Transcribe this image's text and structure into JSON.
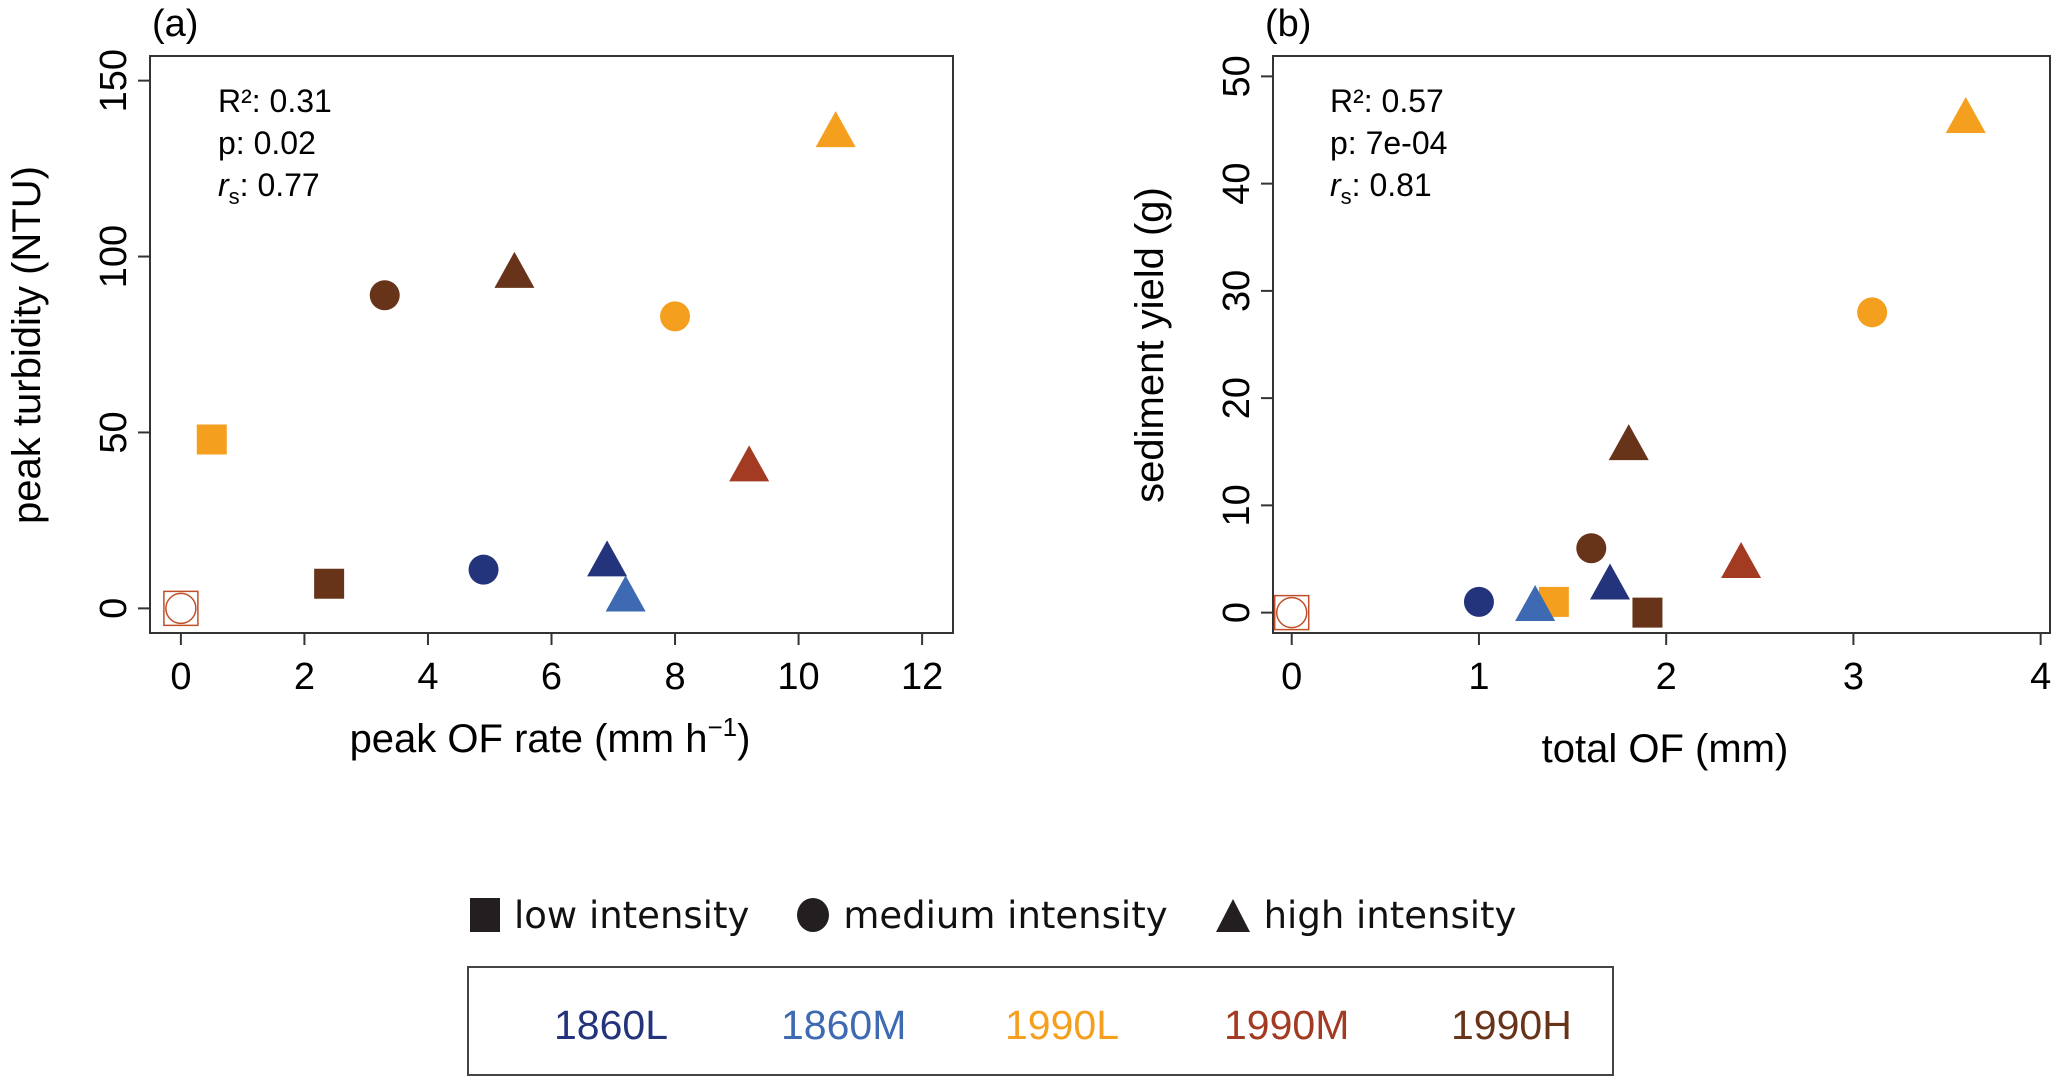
{
  "chart_data": [
    {
      "type": "scatter",
      "panel_label": "(a)",
      "xlabel": "peak OF rate (mm h",
      "xlabel_superscript": "−1",
      "xlabel_suffix": ")",
      "ylabel": "peak turbidity (NTU)",
      "xlim": [
        -0.5,
        12.5
      ],
      "ylim": [
        -7,
        157
      ],
      "xticks": [
        0,
        2,
        4,
        6,
        8,
        10,
        12
      ],
      "yticks": [
        0,
        50,
        100,
        150
      ],
      "grid": false,
      "stats": {
        "r2": "R²: 0.31",
        "p": "p: 0.02",
        "rs_symbol": "r",
        "rs_sub": "s",
        "rs_value": ": 0.77"
      },
      "points": [
        {
          "series": "outlier",
          "shape": "open",
          "x": 0,
          "y": 0
        },
        {
          "series": "1990L",
          "shape": "square",
          "x": 0.5,
          "y": 48
        },
        {
          "series": "1990H",
          "shape": "square",
          "x": 2.4,
          "y": 7
        },
        {
          "series": "1990H",
          "shape": "circle",
          "x": 3.3,
          "y": 89
        },
        {
          "series": "1860L",
          "shape": "circle",
          "x": 4.9,
          "y": 11
        },
        {
          "series": "1990H",
          "shape": "triangle",
          "x": 5.4,
          "y": 95
        },
        {
          "series": "1860L",
          "shape": "triangle",
          "x": 6.9,
          "y": 13
        },
        {
          "series": "1860M",
          "shape": "triangle",
          "x": 7.2,
          "y": 3
        },
        {
          "series": "1990L",
          "shape": "circle",
          "x": 8.0,
          "y": 83
        },
        {
          "series": "1990M",
          "shape": "triangle",
          "x": 9.2,
          "y": 40
        },
        {
          "series": "1990L",
          "shape": "triangle",
          "x": 10.6,
          "y": 135
        }
      ]
    },
    {
      "type": "scatter",
      "panel_label": "(b)",
      "xlabel": "total OF (mm)",
      "ylabel": "sediment yield (g)",
      "xlim": [
        -0.1,
        4.05
      ],
      "ylim": [
        -1.9,
        51.9
      ],
      "xticks": [
        0,
        1,
        2,
        3,
        4
      ],
      "yticks": [
        0,
        10,
        20,
        30,
        40,
        50
      ],
      "grid": false,
      "stats": {
        "r2": "R²: 0.57",
        "p": "p: 7e-04",
        "rs_symbol": "r",
        "rs_sub": "s",
        "rs_value": ": 0.81"
      },
      "points": [
        {
          "series": "outlier",
          "shape": "open",
          "x": 0,
          "y": 0
        },
        {
          "series": "1860L",
          "shape": "circle",
          "x": 1.0,
          "y": 1
        },
        {
          "series": "1990L",
          "shape": "square",
          "x": 1.4,
          "y": 1
        },
        {
          "series": "1860M",
          "shape": "triangle",
          "x": 1.3,
          "y": 0.5
        },
        {
          "series": "1990H",
          "shape": "circle",
          "x": 1.6,
          "y": 6
        },
        {
          "series": "1860L",
          "shape": "triangle",
          "x": 1.7,
          "y": 2.5
        },
        {
          "series": "1990H",
          "shape": "square",
          "x": 1.9,
          "y": 0
        },
        {
          "series": "1990H",
          "shape": "triangle",
          "x": 1.8,
          "y": 15.5
        },
        {
          "series": "1990M",
          "shape": "triangle",
          "x": 2.4,
          "y": 4.5
        },
        {
          "series": "1990L",
          "shape": "circle",
          "x": 3.1,
          "y": 28
        },
        {
          "series": "1990L",
          "shape": "triangle",
          "x": 3.6,
          "y": 46
        }
      ]
    }
  ],
  "series_colors": {
    "1860L": "#24347c",
    "1860M": "#3e6ab3",
    "1990L": "#f59f1f",
    "1990M": "#a33a22",
    "1990H": "#67341a",
    "outlier": "#c0502a"
  },
  "shape_legend": [
    {
      "shape": "square",
      "label": "low intensity"
    },
    {
      "shape": "circle",
      "label": "medium intensity"
    },
    {
      "shape": "triangle",
      "label": "high intensity"
    }
  ],
  "color_legend": [
    {
      "label": "1860L",
      "color": "#24347c"
    },
    {
      "label": "1860M",
      "color": "#3e6ab3"
    },
    {
      "label": "1990L",
      "color": "#f59f1f"
    },
    {
      "label": "1990M",
      "color": "#a33a22"
    },
    {
      "label": "1990H",
      "color": "#67341a"
    }
  ]
}
